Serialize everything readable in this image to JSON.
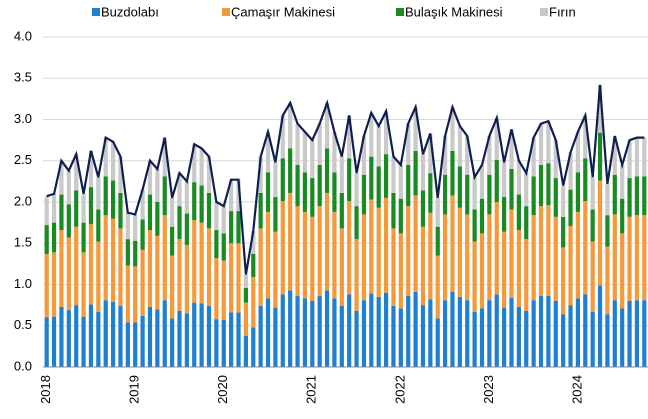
{
  "chart_data": {
    "type": "stacked-bar-line",
    "categories": [
      "2018",
      null,
      null,
      null,
      null,
      null,
      null,
      null,
      null,
      null,
      null,
      null,
      "2019",
      null,
      null,
      null,
      null,
      null,
      null,
      null,
      null,
      null,
      null,
      null,
      "2020",
      null,
      null,
      null,
      null,
      null,
      null,
      null,
      null,
      null,
      null,
      null,
      "2021",
      null,
      null,
      null,
      null,
      null,
      null,
      null,
      null,
      null,
      null,
      null,
      "2022",
      null,
      null,
      null,
      null,
      null,
      null,
      null,
      null,
      null,
      null,
      null,
      "2023",
      null,
      null,
      null,
      null,
      null,
      null,
      null,
      null,
      null,
      null,
      null,
      "2024",
      null,
      null,
      null,
      null,
      null,
      null,
      null,
      null,
      null
    ],
    "series": [
      {
        "name": "Buzdolabı",
        "color": "#1f7fd1",
        "values": [
          0.6,
          0.61,
          0.73,
          0.69,
          0.75,
          0.61,
          0.76,
          0.67,
          0.81,
          0.79,
          0.74,
          0.54,
          0.54,
          0.62,
          0.73,
          0.7,
          0.81,
          0.59,
          0.68,
          0.65,
          0.78,
          0.77,
          0.74,
          0.58,
          0.57,
          0.66,
          0.66,
          0.38,
          0.48,
          0.74,
          0.83,
          0.72,
          0.88,
          0.93,
          0.86,
          0.83,
          0.8,
          0.86,
          0.93,
          0.83,
          0.74,
          0.88,
          0.68,
          0.81,
          0.89,
          0.85,
          0.9,
          0.74,
          0.71,
          0.86,
          0.91,
          0.75,
          0.82,
          0.59,
          0.81,
          0.91,
          0.85,
          0.81,
          0.67,
          0.71,
          0.81,
          0.88,
          0.72,
          0.84,
          0.73,
          0.68,
          0.81,
          0.86,
          0.86,
          0.8,
          0.64,
          0.75,
          0.83,
          0.88,
          0.67,
          0.99,
          0.64,
          0.81,
          0.71,
          0.8,
          0.81,
          0.81
        ]
      },
      {
        "name": "Çamaşır Makinesi",
        "color": "#f5993b",
        "values": [
          0.77,
          0.78,
          0.93,
          0.88,
          0.95,
          0.78,
          0.97,
          0.85,
          1.03,
          1.01,
          0.94,
          0.69,
          0.68,
          0.8,
          0.93,
          0.89,
          1.03,
          0.76,
          0.87,
          0.83,
          1.0,
          0.98,
          0.94,
          0.74,
          0.72,
          0.84,
          0.84,
          0.4,
          0.61,
          0.94,
          1.05,
          0.92,
          1.13,
          1.18,
          1.09,
          1.05,
          1.02,
          1.09,
          1.18,
          1.05,
          0.94,
          1.13,
          0.87,
          1.04,
          1.14,
          1.08,
          1.15,
          0.94,
          0.91,
          1.09,
          1.17,
          0.95,
          1.05,
          0.76,
          1.04,
          1.17,
          1.08,
          1.04,
          0.85,
          0.91,
          1.04,
          1.12,
          0.92,
          1.07,
          0.93,
          0.87,
          1.03,
          1.09,
          1.1,
          1.02,
          0.81,
          0.96,
          1.05,
          1.13,
          0.85,
          1.27,
          0.82,
          1.04,
          0.91,
          1.02,
          1.03,
          1.03
        ]
      },
      {
        "name": "Bulaşık Makinesi",
        "color": "#1a8a22",
        "values": [
          0.35,
          0.36,
          0.43,
          0.4,
          0.44,
          0.36,
          0.45,
          0.39,
          0.47,
          0.46,
          0.43,
          0.32,
          0.31,
          0.37,
          0.43,
          0.41,
          0.47,
          0.35,
          0.4,
          0.38,
          0.46,
          0.45,
          0.43,
          0.34,
          0.33,
          0.39,
          0.39,
          0.18,
          0.28,
          0.43,
          0.48,
          0.42,
          0.52,
          0.54,
          0.5,
          0.48,
          0.47,
          0.5,
          0.54,
          0.48,
          0.43,
          0.52,
          0.4,
          0.48,
          0.52,
          0.5,
          0.53,
          0.43,
          0.42,
          0.5,
          0.54,
          0.44,
          0.48,
          0.35,
          0.48,
          0.54,
          0.5,
          0.48,
          0.39,
          0.42,
          0.48,
          0.51,
          0.42,
          0.49,
          0.43,
          0.4,
          0.47,
          0.5,
          0.51,
          0.47,
          0.37,
          0.44,
          0.48,
          0.52,
          0.39,
          0.58,
          0.38,
          0.48,
          0.42,
          0.47,
          0.47,
          0.47
        ]
      },
      {
        "name": "Fırın",
        "color": "#c9c9c9",
        "values": [
          0.35,
          0.35,
          0.41,
          0.41,
          0.44,
          0.35,
          0.44,
          0.39,
          0.47,
          0.47,
          0.44,
          0.32,
          0.32,
          0.36,
          0.41,
          0.4,
          0.47,
          0.35,
          0.4,
          0.39,
          0.46,
          0.45,
          0.44,
          0.34,
          0.33,
          0.38,
          0.38,
          0.16,
          0.28,
          0.44,
          0.49,
          0.42,
          0.52,
          0.55,
          0.5,
          0.49,
          0.46,
          0.5,
          0.55,
          0.49,
          0.44,
          0.52,
          0.4,
          0.47,
          0.53,
          0.49,
          0.52,
          0.44,
          0.41,
          0.5,
          0.53,
          0.44,
          0.48,
          0.35,
          0.47,
          0.53,
          0.49,
          0.47,
          0.39,
          0.41,
          0.47,
          0.51,
          0.42,
          0.48,
          0.41,
          0.4,
          0.47,
          0.5,
          0.51,
          0.46,
          0.38,
          0.45,
          0.49,
          0.52,
          0.39,
          0.58,
          0.38,
          0.47,
          0.41,
          0.46,
          0.47,
          0.47
        ]
      }
    ],
    "line_color": "#0f1f4f",
    "ylim": [
      0,
      4
    ],
    "yticks": [
      {
        "value": 0,
        "label": "0.0"
      },
      {
        "value": 0.5,
        "label": "0.5"
      },
      {
        "value": 1,
        "label": "1.0"
      },
      {
        "value": 1.5,
        "label": "1.5"
      },
      {
        "value": 2,
        "label": "2.0"
      },
      {
        "value": 2.5,
        "label": "2.5"
      },
      {
        "value": 3,
        "label": "3.0"
      },
      {
        "value": 3.5,
        "label": "3.5"
      },
      {
        "value": 4,
        "label": "4.0"
      }
    ],
    "grid": true,
    "legend": "top"
  }
}
